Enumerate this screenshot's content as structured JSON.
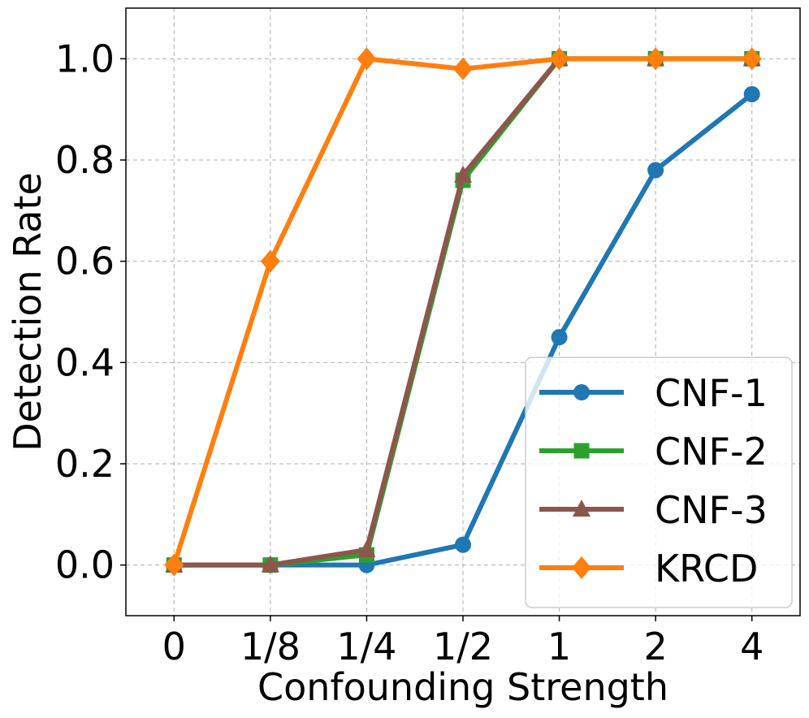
{
  "chart_data": {
    "type": "line",
    "title": "",
    "xlabel": "Confounding Strength",
    "ylabel": "Detection Rate",
    "categories": [
      "0",
      "1/8",
      "1/4",
      "1/2",
      "1",
      "2",
      "4"
    ],
    "ylim": [
      -0.1,
      1.1
    ],
    "yticks": [
      "0.0",
      "0.2",
      "0.4",
      "0.6",
      "0.8",
      "1.0"
    ],
    "ytick_values": [
      0.0,
      0.2,
      0.4,
      0.6,
      0.8,
      1.0
    ],
    "grid": true,
    "legend_position": "lower-right",
    "series": [
      {
        "name": "CNF-1",
        "color": "#1f77b4",
        "marker": "circle",
        "values": [
          0.0,
          0.0,
          0.0,
          0.04,
          0.45,
          0.78,
          0.93
        ]
      },
      {
        "name": "CNF-2",
        "color": "#2ca02c",
        "marker": "square",
        "values": [
          0.0,
          0.0,
          0.02,
          0.76,
          1.0,
          1.0,
          1.0
        ]
      },
      {
        "name": "CNF-3",
        "color": "#8c564b",
        "marker": "triangle",
        "values": [
          0.0,
          0.0,
          0.03,
          0.77,
          1.0,
          1.0,
          1.0
        ]
      },
      {
        "name": "KRCD",
        "color": "#ff7f0e",
        "marker": "diamond",
        "values": [
          0.0,
          0.6,
          1.0,
          0.98,
          1.0,
          1.0,
          1.0
        ]
      }
    ]
  }
}
